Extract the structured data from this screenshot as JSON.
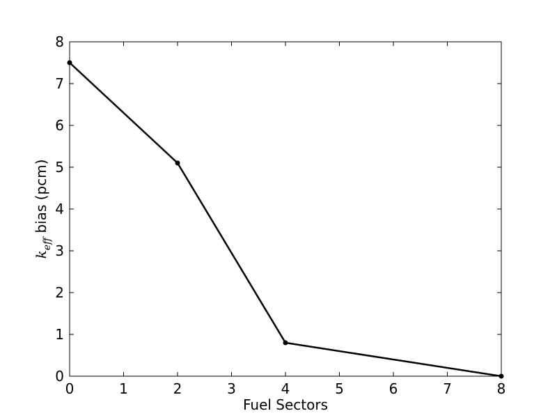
{
  "chart_data": {
    "type": "line",
    "title": "",
    "xlabel": "Fuel Sectors",
    "ylabel": {
      "symbol": "k",
      "subscript": "eff",
      "rest": " bias (pcm)"
    },
    "xlim": [
      0,
      8
    ],
    "ylim": [
      0,
      8
    ],
    "xticks": [
      "0",
      "1",
      "2",
      "3",
      "4",
      "5",
      "6",
      "7",
      "8"
    ],
    "yticks": [
      "0",
      "1",
      "2",
      "3",
      "4",
      "5",
      "6",
      "7",
      "8"
    ],
    "grid": false,
    "legend": "none",
    "series": [
      {
        "color": "#000000",
        "marker": "circle",
        "x": [
          0,
          2,
          4,
          8
        ],
        "y": [
          7.5,
          5.1,
          0.8,
          0.0
        ]
      }
    ]
  }
}
